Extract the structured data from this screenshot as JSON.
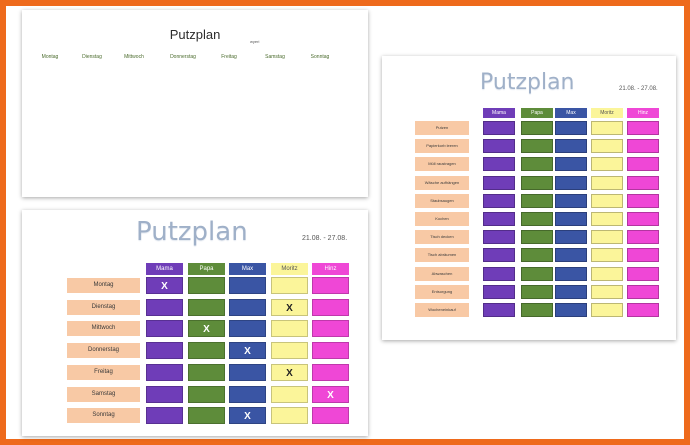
{
  "colors": {
    "frame": "#ee6a1c",
    "mama": "#6f3db8",
    "papa": "#5e8c3a",
    "max": "#3a55a4",
    "moritz": "#fbf59a",
    "hinz": "#ef47d6",
    "label_bg": "#f8c9a5"
  },
  "page1": {
    "title": "Putzplan",
    "note": "wyeri",
    "days": [
      "Montag",
      "Dienstag",
      "Mittwoch",
      "Donnerstag",
      "Freitag",
      "Samstag",
      "Sonntag"
    ]
  },
  "page2": {
    "title": "Putzplan",
    "date_range": "21.08. - 27.08.",
    "people": [
      "Mama",
      "Papa",
      "Max",
      "Moritz",
      "Hinz"
    ],
    "tasks": [
      "Putzen",
      "Papierkorb leeren",
      "Müll raustragen",
      "Wäsche aufhängen",
      "Staubsaugen",
      "Kochen",
      "Tisch decken",
      "Tisch abräumen",
      "Abwaschen",
      "Entsorgung",
      "Wocheneinkauf"
    ]
  },
  "page3": {
    "title": "Putzplan",
    "date_range": "21.08. - 27.08.",
    "people": [
      "Mama",
      "Papa",
      "Max",
      "Moritz",
      "Hinz"
    ],
    "days": [
      "Montag",
      "Dienstag",
      "Mittwoch",
      "Donnerstag",
      "Freitag",
      "Samstag",
      "Sonntag"
    ],
    "marks": [
      [
        "X",
        "",
        "",
        "",
        ""
      ],
      [
        "",
        "",
        "",
        "X",
        ""
      ],
      [
        "",
        "X",
        "",
        "",
        ""
      ],
      [
        "",
        "",
        "X",
        "",
        ""
      ],
      [
        "",
        "",
        "",
        "X",
        ""
      ],
      [
        "",
        "",
        "",
        "",
        "X"
      ],
      [
        "",
        "",
        "X",
        "",
        ""
      ]
    ]
  }
}
